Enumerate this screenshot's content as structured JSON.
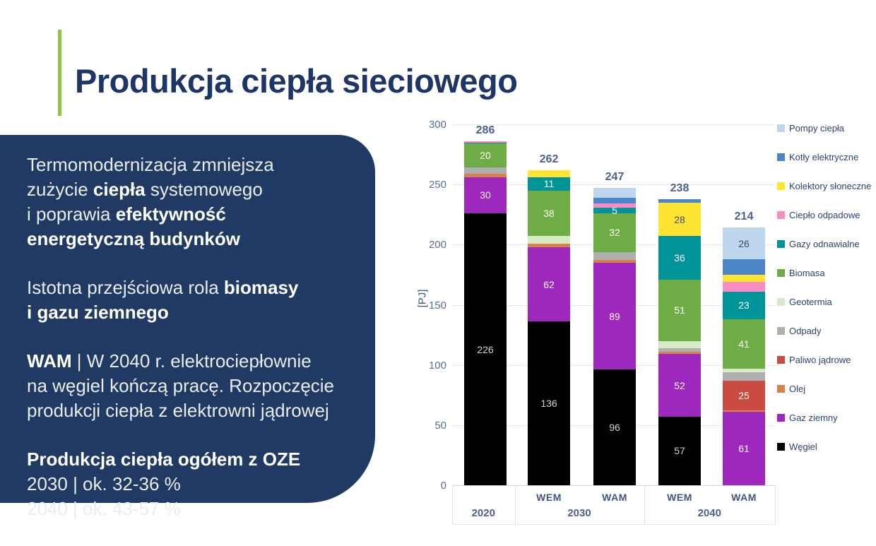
{
  "slide": {
    "title": "Produkcja ciepła sieciowego",
    "accent_color": "#8DC63F",
    "title_color": "#1E3666",
    "infobox": {
      "bg": "#203A63",
      "paragraphs": [
        {
          "runs": [
            {
              "t": "Termomodernizacja zmniejsza\nzużycie ",
              "b": false
            },
            {
              "t": "ciepła",
              "b": true
            },
            {
              "t": " systemowego\ni poprawia ",
              "b": false
            },
            {
              "t": "efektywność\nenergetyczną budynków",
              "b": true
            }
          ]
        },
        {
          "runs": [
            {
              "t": "Istotna przejściowa rola ",
              "b": false
            },
            {
              "t": "biomasy\ni gazu ziemnego",
              "b": true
            }
          ]
        },
        {
          "runs": [
            {
              "t": "WAM",
              "b": true
            },
            {
              "t": " | W 2040 r. elektrociepłownie\nna węgiel kończą pracę. Rozpoczęcie\nprodukcji ciepła z elektrowni jądrowej",
              "b": false
            }
          ]
        },
        {
          "runs": [
            {
              "t": "Produkcja ciepła ogółem z OZE",
              "b": true
            },
            {
              "t": "\n2030 | ok. 32-36 %\n2040 | ok. 43-57 %",
              "b": false
            }
          ]
        }
      ]
    }
  },
  "chart_data": {
    "type": "bar",
    "stacked": true,
    "title": "",
    "xlabel": "",
    "ylabel": "[PJ]",
    "ylim": [
      0,
      300
    ],
    "yticks": [
      0,
      50,
      100,
      150,
      200,
      250,
      300
    ],
    "grid": true,
    "legend_position": "right",
    "legend": [
      {
        "label": "Pompy ciepła",
        "color": "#BDD6EC"
      },
      {
        "label": "Kotły elektryczne",
        "color": "#4C85C7"
      },
      {
        "label": "Kolektory słoneczne",
        "color": "#FFE432"
      },
      {
        "label": "Ciepło odpadowe",
        "color": "#F98BC6"
      },
      {
        "label": "Gazy odnawialne",
        "color": "#009499"
      },
      {
        "label": "Biomasa",
        "color": "#6EAC45"
      },
      {
        "label": "Geotermia",
        "color": "#D8E9C6"
      },
      {
        "label": "Odpady",
        "color": "#AFAFAF"
      },
      {
        "label": "Paliwo jądrowe",
        "color": "#C94B41"
      },
      {
        "label": "Olej",
        "color": "#D88148"
      },
      {
        "label": "Gaz ziemny",
        "color": "#9E28BE"
      },
      {
        "label": "Węgiel",
        "color": "#000000"
      }
    ],
    "series_order_bottom_to_top": [
      "Węgiel",
      "Gaz ziemny",
      "Olej",
      "Paliwo jądrowe",
      "Odpady",
      "Geotermia",
      "Biomasa",
      "Gazy odnawialne",
      "Ciepło odpadowe",
      "Kolektory słoneczne",
      "Kotły elektryczne",
      "Pompy ciepła"
    ],
    "colors": {
      "Węgiel": "#000000",
      "Gaz ziemny": "#9E28BE",
      "Olej": "#D88148",
      "Paliwo jądrowe": "#C94B41",
      "Odpady": "#AFAFAF",
      "Geotermia": "#D8E9C6",
      "Biomasa": "#6EAC45",
      "Gazy odnawialne": "#009499",
      "Ciepło odpadowe": "#F98BC6",
      "Kolektory słoneczne": "#FFE432",
      "Kotły elektryczne": "#4C85C7",
      "Pompy ciepła": "#BDD6EC"
    },
    "label_colors": {
      "default": "#FFFFFF",
      "Węgiel": "#D6D2CA",
      "Kolektory słoneczne": "#3A4A6B",
      "Pompy ciepła": "#3A4A6B"
    },
    "groups": [
      {
        "year": "2020",
        "bar_indexes": [
          0
        ]
      },
      {
        "year": "2030",
        "bar_indexes": [
          1,
          2
        ]
      },
      {
        "year": "2040",
        "bar_indexes": [
          3,
          4
        ]
      }
    ],
    "bars": [
      {
        "year": "2020",
        "scenario": "",
        "total": 286,
        "segments": [
          {
            "name": "Węgiel",
            "value": 226,
            "label": "226"
          },
          {
            "name": "Gaz ziemny",
            "value": 30,
            "label": "30"
          },
          {
            "name": "Olej",
            "value": 3
          },
          {
            "name": "Odpady",
            "value": 5
          },
          {
            "name": "Biomasa",
            "value": 20,
            "label": "20"
          },
          {
            "name": "Gazy odnawialne",
            "value": 1
          },
          {
            "name": "Ciepło odpadowe",
            "value": 1
          }
        ]
      },
      {
        "year": "2030",
        "scenario": "WEM",
        "total": 262,
        "segments": [
          {
            "name": "Węgiel",
            "value": 136,
            "label": "136"
          },
          {
            "name": "Gaz ziemny",
            "value": 62,
            "label": "62"
          },
          {
            "name": "Olej",
            "value": 3
          },
          {
            "name": "Geotermia",
            "value": 6
          },
          {
            "name": "Biomasa",
            "value": 38,
            "label": "38"
          },
          {
            "name": "Gazy odnawialne",
            "value": 11,
            "label": "11"
          },
          {
            "name": "Kolektory słoneczne",
            "value": 6
          }
        ]
      },
      {
        "year": "2030",
        "scenario": "WAM",
        "total": 247,
        "segments": [
          {
            "name": "Węgiel",
            "value": 96,
            "label": "96"
          },
          {
            "name": "Gaz ziemny",
            "value": 89,
            "label": "89"
          },
          {
            "name": "Olej",
            "value": 2
          },
          {
            "name": "Odpady",
            "value": 7
          },
          {
            "name": "Biomasa",
            "value": 32,
            "label": "32"
          },
          {
            "name": "Gazy odnawialne",
            "value": 5,
            "label": "5"
          },
          {
            "name": "Ciepło odpadowe",
            "value": 3
          },
          {
            "name": "Kotły elektryczne",
            "value": 5
          },
          {
            "name": "Pompy ciepła",
            "value": 8
          }
        ]
      },
      {
        "year": "2040",
        "scenario": "WEM",
        "total": 238,
        "segments": [
          {
            "name": "Węgiel",
            "value": 57,
            "label": "57"
          },
          {
            "name": "Gaz ziemny",
            "value": 52,
            "label": "52"
          },
          {
            "name": "Olej",
            "value": 2
          },
          {
            "name": "Odpady",
            "value": 3
          },
          {
            "name": "Geotermia",
            "value": 6
          },
          {
            "name": "Biomasa",
            "value": 51,
            "label": "51"
          },
          {
            "name": "Gazy odnawialne",
            "value": 36,
            "label": "36"
          },
          {
            "name": "Kolektory słoneczne",
            "value": 28,
            "label": "28"
          },
          {
            "name": "Kotły elektryczne",
            "value": 3
          }
        ]
      },
      {
        "year": "2040",
        "scenario": "WAM",
        "total": 214,
        "segments": [
          {
            "name": "Gaz ziemny",
            "value": 61,
            "label": "61"
          },
          {
            "name": "Olej",
            "value": 1
          },
          {
            "name": "Paliwo jądrowe",
            "value": 25,
            "label": "25"
          },
          {
            "name": "Odpady",
            "value": 7
          },
          {
            "name": "Geotermia",
            "value": 3
          },
          {
            "name": "Biomasa",
            "value": 41,
            "label": "41"
          },
          {
            "name": "Gazy odnawialne",
            "value": 23,
            "label": "23"
          },
          {
            "name": "Ciepło odpadowe",
            "value": 8
          },
          {
            "name": "Kolektory słoneczne",
            "value": 6
          },
          {
            "name": "Kotły elektryczne",
            "value": 13
          },
          {
            "name": "Pompy ciepła",
            "value": 26,
            "label": "26"
          }
        ]
      }
    ]
  }
}
